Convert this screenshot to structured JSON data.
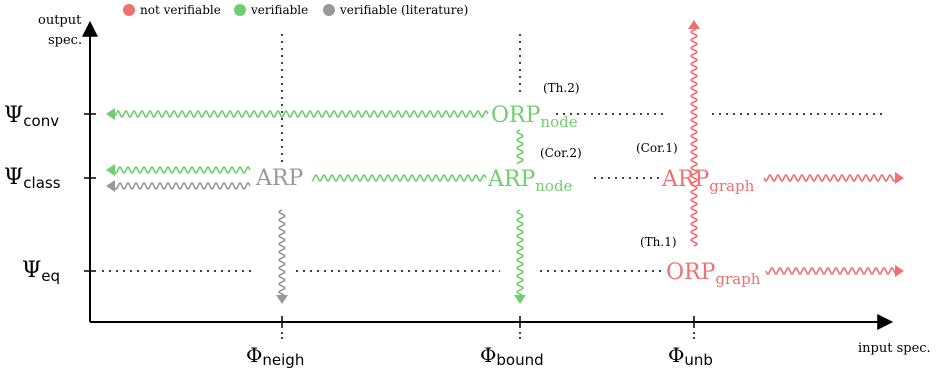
{
  "legend": {
    "items": [
      {
        "label": "not verifiable",
        "color": "#f07070"
      },
      {
        "label": "verifiable",
        "color": "#6fcf6f"
      },
      {
        "label": "verifiable (literature)",
        "color": "#999999"
      }
    ]
  },
  "axes": {
    "y_label_line1": "output",
    "y_label_line2": "spec.",
    "x_label": "input spec."
  },
  "y_ticks": [
    {
      "main": "Ψ",
      "sub": "conv"
    },
    {
      "main": "Ψ",
      "sub": "class"
    },
    {
      "main": "Ψ",
      "sub": "eq"
    }
  ],
  "x_ticks": [
    {
      "main": "Φ",
      "sub": "neigh"
    },
    {
      "main": "Φ",
      "sub": "bound"
    },
    {
      "main": "Φ",
      "sub": "unb"
    }
  ],
  "nodes": {
    "arp": {
      "main": "ARP",
      "sub": ""
    },
    "orp_node": {
      "main": "ORP",
      "sub": "node"
    },
    "arp_node": {
      "main": "ARP",
      "sub": "node"
    },
    "arp_graph": {
      "main": "ARP",
      "sub": "graph"
    },
    "orp_graph": {
      "main": "ORP",
      "sub": "graph"
    }
  },
  "annotations": {
    "th2": "(Th.2)",
    "cor2": "(Cor.2)",
    "cor1": "(Cor.1)",
    "th1": "(Th.1)"
  },
  "colors": {
    "red": "#f07070",
    "green": "#6fcf6f",
    "gray": "#999999",
    "axis": "#000000"
  }
}
